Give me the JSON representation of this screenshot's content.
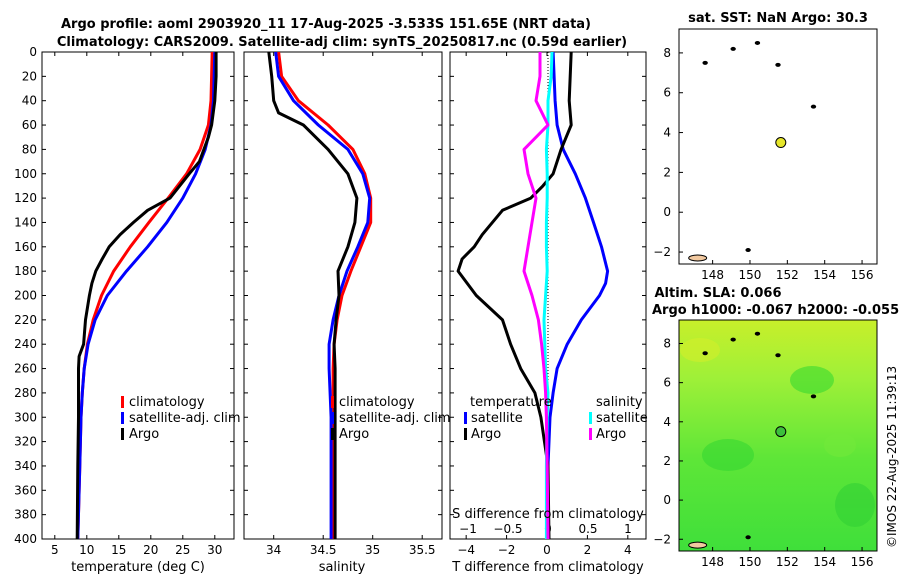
{
  "titles": {
    "line1": "Argo profile: aoml 2903920_11 17-Aug-2025 -3.533S 151.65E (NRT data)",
    "line2": "Climatology: CARS2009. Satellite-adj clim: synTS_20250817.nc (0.59d earlier)"
  },
  "watermark": "©IMOS 22-Aug-2025 11:39:13",
  "colors": {
    "climatology": "#ff0000",
    "satellite": "#0000ff",
    "argo": "#000000",
    "sal_satellite": "#00ffff",
    "sal_argo": "#ff00ff",
    "marker": "#e6e62a",
    "sla_bg": "#44e63a"
  },
  "chart_data": [
    {
      "type": "line",
      "xlabel": "temperature (deg C)",
      "ylabel": "",
      "xlim": [
        3,
        33
      ],
      "ylim": [
        400,
        0
      ],
      "xticks": [
        5,
        10,
        15,
        20,
        25,
        30
      ],
      "yticks": [
        0,
        20,
        40,
        60,
        80,
        100,
        120,
        140,
        160,
        180,
        200,
        220,
        240,
        260,
        280,
        300,
        320,
        340,
        360,
        380,
        400
      ],
      "legend": [
        "climatology",
        "satellite-adj. clim",
        "Argo"
      ],
      "series": [
        {
          "name": "climatology",
          "depth": [
            0,
            40,
            60,
            80,
            100,
            120,
            140,
            160,
            180,
            200,
            220,
            240,
            260,
            280,
            300,
            340,
            400
          ],
          "values": [
            29.6,
            29.4,
            29,
            27.7,
            25.6,
            22.7,
            19.7,
            16.8,
            14.2,
            12.3,
            11,
            10.1,
            9.6,
            9.3,
            9.1,
            8.9,
            8.6
          ]
        },
        {
          "name": "satellite-adj. clim",
          "depth": [
            0,
            40,
            60,
            80,
            100,
            120,
            140,
            160,
            180,
            200,
            220,
            240,
            260,
            280,
            300,
            340,
            400
          ],
          "values": [
            30,
            29.8,
            29.4,
            28.5,
            27,
            25,
            22.5,
            19.5,
            16.2,
            13.2,
            11.3,
            10.2,
            9.6,
            9.3,
            9.1,
            8.9,
            8.6
          ]
        },
        {
          "name": "Argo",
          "depth": [
            0,
            20,
            40,
            60,
            70,
            80,
            90,
            100,
            110,
            120,
            130,
            140,
            150,
            160,
            170,
            180,
            190,
            200,
            220,
            240,
            250,
            260,
            280,
            300,
            340,
            400
          ],
          "values": [
            30.2,
            30.2,
            30,
            29.5,
            29,
            28.3,
            27.6,
            26,
            24.5,
            23,
            19.5,
            17.3,
            15.2,
            13.5,
            12.4,
            11.4,
            10.8,
            10.4,
            9.8,
            9.5,
            8.8,
            8.7,
            8.7,
            8.7,
            8.6,
            8.5
          ]
        }
      ]
    },
    {
      "type": "line",
      "xlabel": "salinity",
      "xlim": [
        33.7,
        35.7
      ],
      "ylim": [
        400,
        0
      ],
      "xticks": [
        34,
        34.5,
        35,
        35.5
      ],
      "legend": [
        "climatology",
        "satellite-adj. clim",
        "Argo"
      ],
      "series": [
        {
          "name": "climatology",
          "depth": [
            0,
            20,
            40,
            60,
            80,
            100,
            120,
            140,
            160,
            180,
            200,
            220,
            240,
            260,
            280,
            300,
            400
          ],
          "values": [
            34.05,
            34.08,
            34.25,
            34.55,
            34.8,
            34.92,
            34.98,
            34.98,
            34.88,
            34.78,
            34.69,
            34.64,
            34.61,
            34.6,
            34.6,
            34.6,
            34.6
          ]
        },
        {
          "name": "satellite-adj. clim",
          "depth": [
            0,
            20,
            40,
            60,
            80,
            100,
            120,
            140,
            160,
            180,
            200,
            220,
            240,
            260,
            280,
            300,
            400
          ],
          "values": [
            34.02,
            34.05,
            34.2,
            34.45,
            34.75,
            34.9,
            34.97,
            34.95,
            34.85,
            34.74,
            34.66,
            34.6,
            34.56,
            34.56,
            34.57,
            34.58,
            34.58
          ]
        },
        {
          "name": "Argo",
          "depth": [
            0,
            20,
            40,
            50,
            60,
            80,
            100,
            120,
            140,
            160,
            180,
            200,
            220,
            240,
            260,
            280,
            300,
            400
          ],
          "values": [
            33.95,
            33.98,
            34.0,
            34.05,
            34.3,
            34.55,
            34.75,
            34.84,
            34.82,
            34.75,
            34.65,
            34.66,
            34.63,
            34.61,
            34.62,
            34.62,
            34.62,
            34.62
          ]
        }
      ]
    },
    {
      "type": "line",
      "xlabel": "T difference from climatology",
      "top_xlabel": "S difference from climatology",
      "xlim": [
        -4.8,
        4.9
      ],
      "ylim": [
        400,
        0
      ],
      "xticks": [
        -4,
        -2,
        0,
        2,
        4
      ],
      "top_xticks": [
        -1,
        -0.5,
        0,
        0.5,
        1
      ],
      "legend_left_title": "temperature",
      "legend_right_title": "salinity",
      "legend_left": [
        "satellite",
        "Argo"
      ],
      "legend_right": [
        "satellite",
        "Argo"
      ],
      "series": [
        {
          "name": "T satellite",
          "axis": "T",
          "depth": [
            0,
            40,
            60,
            80,
            100,
            120,
            140,
            160,
            180,
            190,
            200,
            220,
            240,
            260,
            280,
            300,
            340,
            400
          ],
          "values": [
            0.3,
            0.4,
            0.5,
            0.8,
            1.4,
            1.9,
            2.3,
            2.7,
            3,
            2.9,
            2.6,
            1.7,
            1,
            0.5,
            0.3,
            0.15,
            0.05,
            0
          ]
        },
        {
          "name": "T Argo",
          "axis": "T",
          "depth": [
            0,
            40,
            60,
            80,
            100,
            110,
            120,
            130,
            140,
            150,
            160,
            170,
            180,
            200,
            220,
            240,
            260,
            280,
            300,
            340,
            400
          ],
          "values": [
            1.2,
            1.1,
            1.2,
            0.7,
            0.3,
            -0.2,
            -0.8,
            -2.2,
            -2.7,
            -3.2,
            -3.6,
            -4.2,
            -4.4,
            -3.5,
            -2.2,
            -1.8,
            -1.3,
            -0.6,
            -0.3,
            0.05,
            0.1
          ]
        },
        {
          "name": "S satellite",
          "axis": "S",
          "depth": [
            0,
            20,
            40,
            60,
            80,
            100,
            120,
            140,
            160,
            180,
            200,
            220,
            240,
            260,
            280,
            300,
            340,
            400
          ],
          "values": [
            0.05,
            0.04,
            0.0,
            0.0,
            -0.02,
            -0.01,
            -0.01,
            -0.02,
            -0.02,
            -0.01,
            -0.03,
            -0.05,
            -0.04,
            -0.03,
            0,
            -0.01,
            -0.02,
            -0.02
          ]
        },
        {
          "name": "S Argo",
          "axis": "S",
          "depth": [
            0,
            20,
            40,
            60,
            80,
            100,
            120,
            140,
            160,
            180,
            200,
            220,
            240,
            260,
            280,
            300,
            340,
            400
          ],
          "values": [
            -0.1,
            -0.1,
            -0.15,
            0,
            -0.3,
            -0.25,
            -0.15,
            -0.2,
            -0.25,
            -0.3,
            -0.2,
            -0.12,
            -0.08,
            -0.05,
            -0.03,
            -0.02,
            -0.01,
            0
          ]
        }
      ]
    },
    {
      "type": "scatter",
      "title": "sat. SST: NaN Argo: 30.3",
      "xlim": [
        146.2,
        156.8
      ],
      "ylim": [
        -2.6,
        9.2
      ],
      "xticks": [
        148,
        150,
        152,
        154,
        156
      ],
      "yticks": [
        -2,
        0,
        2,
        4,
        6,
        8
      ],
      "marker": {
        "lon": 151.65,
        "lat": 3.5
      },
      "land": [
        [
          147.2,
          -2.3
        ],
        [
          149.9,
          -1.9
        ],
        [
          151.5,
          7.4
        ],
        [
          153.4,
          5.3
        ],
        [
          149.1,
          8.2
        ],
        [
          147.6,
          7.5
        ],
        [
          150.4,
          8.5
        ]
      ]
    },
    {
      "type": "heatmap",
      "title": "Altim. SLA: 0.066",
      "subtitle": "Argo h1000: -0.067 h2000: -0.055",
      "xlim": [
        146.2,
        156.8
      ],
      "ylim": [
        -2.6,
        9.2
      ],
      "xticks": [
        148,
        150,
        152,
        154,
        156
      ],
      "yticks": [
        -2,
        0,
        2,
        4,
        6,
        8
      ],
      "marker": {
        "lon": 151.65,
        "lat": 3.5
      }
    }
  ]
}
